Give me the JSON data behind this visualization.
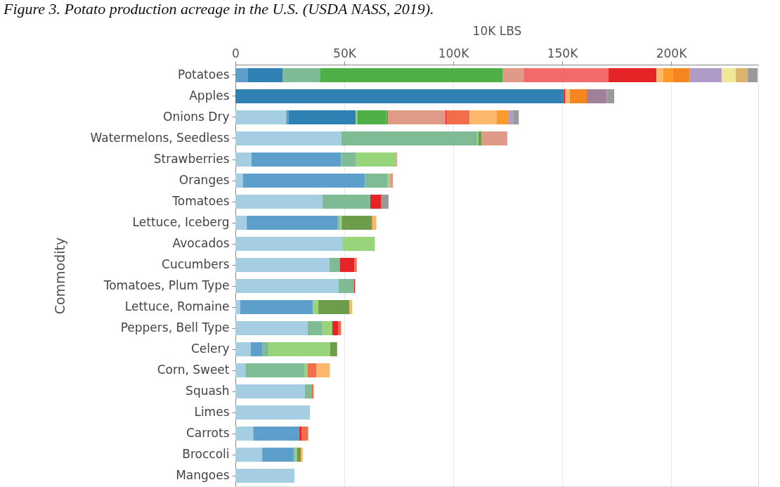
{
  "chart_data": {
    "type": "bar",
    "orientation": "horizontal",
    "stacked": true,
    "title": "Figure 3. Potato production acreage in the U.S. (USDA NASS, 2019).",
    "xlabel": "10K LBS",
    "ylabel": "Commodity",
    "categories": [
      "Potatoes",
      "Apples",
      "Onions Dry",
      "Watermelons, Seedless",
      "Strawberries",
      "Oranges",
      "Tomatoes",
      "Lettuce, Iceberg",
      "Avocados",
      "Cucumbers",
      "Tomatoes, Plum Type",
      "Lettuce, Romaine",
      "Peppers, Bell Type",
      "Celery",
      "Corn, Sweet",
      "Squash",
      "Limes",
      "Carrots",
      "Broccoli",
      "Mangoes"
    ],
    "xlim": [
      0,
      240000
    ],
    "xticks": [
      0,
      {
        "value": 50000,
        "label": "50K"
      },
      {
        "value": 100000,
        "label": "100K"
      },
      {
        "value": 150000,
        "label": "150K"
      },
      {
        "value": 200000,
        "label": "200K"
      }
    ],
    "grid": "x",
    "series": [
      {
        "color": "#a6cee3",
        "values": [
          null,
          null,
          23300,
          48700,
          7400,
          3400,
          40000,
          5200,
          49100,
          43100,
          47400,
          2200,
          33100,
          7000,
          4600,
          31800,
          34200,
          8200,
          12300,
          27100
        ]
      },
      {
        "color": "#5b9fca",
        "values": [
          5800,
          null,
          1000,
          null,
          41100,
          56100,
          null,
          41800,
          null,
          null,
          null,
          33400,
          null,
          5300,
          null,
          null,
          null,
          21200,
          14400,
          null
        ]
      },
      {
        "color": "#2f80b3",
        "values": [
          16000,
          150500,
          31000,
          null,
          null,
          null,
          null,
          null,
          null,
          null,
          null,
          null,
          null,
          null,
          null,
          null,
          null,
          null,
          null,
          null
        ]
      },
      {
        "color": "#7fbc96",
        "values": [
          17000,
          null,
          null,
          62300,
          6900,
          10400,
          21900,
          900,
          null,
          4800,
          7100,
          null,
          6800,
          2900,
          27000,
          3100,
          null,
          null,
          900,
          null
        ]
      },
      {
        "color": "#98d47a",
        "values": [
          null,
          null,
          600,
          600,
          18400,
          900,
          null,
          900,
          14900,
          null,
          null,
          2500,
          4600,
          28200,
          1500,
          null,
          null,
          null,
          600,
          null
        ]
      },
      {
        "color": "#4daf45",
        "values": [
          84000,
          null,
          13300,
          null,
          null,
          null,
          null,
          null,
          null,
          null,
          null,
          null,
          null,
          null,
          null,
          null,
          null,
          null,
          null,
          null
        ]
      },
      {
        "color": "#6d9c4a",
        "values": [
          null,
          null,
          800,
          1500,
          null,
          null,
          null,
          13700,
          null,
          null,
          null,
          14300,
          null,
          3300,
          null,
          null,
          null,
          null,
          1800,
          null
        ]
      },
      {
        "color": "#e09a88",
        "values": [
          9500,
          null,
          26400,
          11700,
          null,
          1500,
          null,
          null,
          null,
          null,
          null,
          null,
          null,
          null,
          null,
          null,
          null,
          null,
          null,
          null
        ]
      },
      {
        "color": "#f26b6b",
        "values": [
          39000,
          null,
          null,
          null,
          300,
          null,
          null,
          null,
          null,
          null,
          null,
          null,
          null,
          null,
          null,
          null,
          null,
          null,
          null,
          null
        ]
      },
      {
        "color": "#e42426",
        "values": [
          22000,
          1000,
          600,
          null,
          null,
          null,
          5100,
          300,
          null,
          6700,
          400,
          null,
          2600,
          null,
          null,
          null,
          null,
          1000,
          null,
          null
        ]
      },
      {
        "color": "#f26d4a",
        "values": [
          null,
          null,
          10500,
          null,
          null,
          null,
          null,
          null,
          null,
          1100,
          null,
          null,
          1400,
          null,
          4200,
          1000,
          null,
          3000,
          null,
          null
        ]
      },
      {
        "color": "#fdb76b",
        "values": [
          3000,
          2000,
          12500,
          null,
          null,
          null,
          null,
          1900,
          null,
          null,
          null,
          1200,
          null,
          null,
          6000,
          null,
          null,
          null,
          900,
          null
        ]
      },
      {
        "color": "#fc9a2e",
        "values": [
          4600,
          null,
          5200,
          null,
          null,
          null,
          null,
          null,
          null,
          null,
          null,
          null,
          null,
          null,
          null,
          null,
          null,
          null,
          null,
          null
        ]
      },
      {
        "color": "#f5861f",
        "values": [
          7700,
          7800,
          null,
          null,
          null,
          null,
          null,
          null,
          null,
          null,
          null,
          null,
          null,
          null,
          null,
          null,
          null,
          null,
          null,
          null
        ]
      },
      {
        "color": "#b09ac8",
        "values": [
          14600,
          null,
          2300,
          null,
          null,
          null,
          null,
          null,
          null,
          null,
          null,
          null,
          null,
          null,
          null,
          null,
          null,
          null,
          null,
          null
        ]
      },
      {
        "color": "#a08098",
        "values": [
          null,
          9200,
          null,
          null,
          null,
          null,
          null,
          null,
          null,
          null,
          null,
          null,
          null,
          null,
          null,
          null,
          null,
          null,
          null,
          null
        ]
      },
      {
        "color": "#f0e896",
        "values": [
          6500,
          null,
          null,
          null,
          null,
          null,
          null,
          null,
          null,
          null,
          null,
          null,
          null,
          null,
          null,
          null,
          null,
          null,
          null,
          null
        ]
      },
      {
        "color": "#dcb46c",
        "values": [
          5500,
          null,
          null,
          null,
          null,
          null,
          null,
          null,
          null,
          null,
          null,
          null,
          null,
          null,
          null,
          null,
          null,
          null,
          null,
          null
        ]
      },
      {
        "color": "#999999",
        "values": [
          4500,
          3400,
          2600,
          null,
          null,
          null,
          3300,
          null,
          null,
          null,
          null,
          null,
          null,
          null,
          null,
          null,
          null,
          null,
          null,
          null
        ]
      }
    ]
  }
}
